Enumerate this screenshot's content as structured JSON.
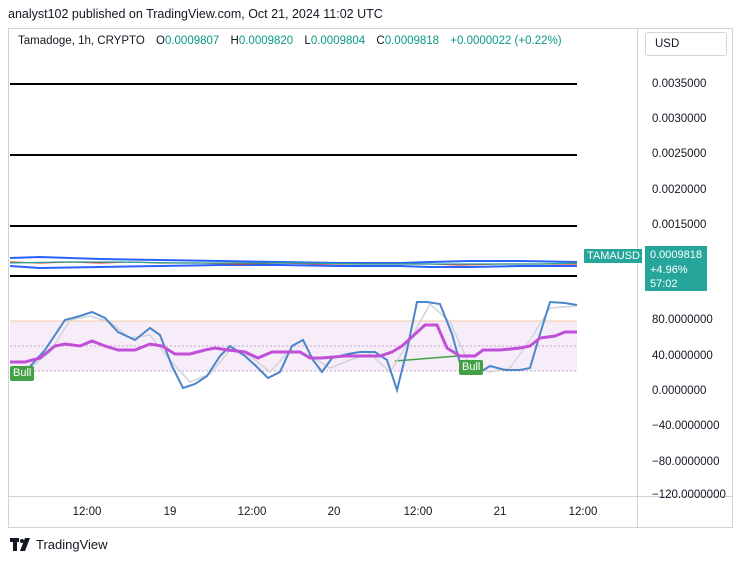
{
  "header": {
    "publisher": "analyst102 published on TradingView.com, Oct 21, 2024 11:02 UTC"
  },
  "symbol": {
    "name": "Tamadoge, 1h, CRYPTO",
    "open_label": "O",
    "open": "0.0009807",
    "high_label": "H",
    "high": "0.0009820",
    "low_label": "L",
    "low": "0.0009804",
    "close_label": "C",
    "close": "0.0009818",
    "change": "+0.0000022 (+0.22%)"
  },
  "currency": "USD",
  "price_axis": [
    "0.0035000",
    "0.0030000",
    "0.0025000",
    "0.0020000",
    "0.0015000"
  ],
  "last_price": {
    "ticker": "TAMAUSD",
    "price": "0.0009818",
    "change_pct": "+4.96%",
    "countdown": "57:02"
  },
  "oscillator_axis": [
    "80.0000000",
    "40.0000000",
    "0.0000000",
    "−40.0000000",
    "−80.0000000",
    "−120.0000000"
  ],
  "time_axis": [
    "12:00",
    "19",
    "12:00",
    "20",
    "12:00",
    "21",
    "12:00"
  ],
  "bull_labels": [
    "Bull",
    "Bull"
  ],
  "footer": {
    "brand": "TradingView",
    "logo_icon": "tradingview-logo-icon"
  },
  "colors": {
    "accent": "#26a69a",
    "bull": "#43a047",
    "stoch_k": "#4a86c8",
    "stoch_d": "#c050d8",
    "bg_band": "#f3e5f5"
  }
}
